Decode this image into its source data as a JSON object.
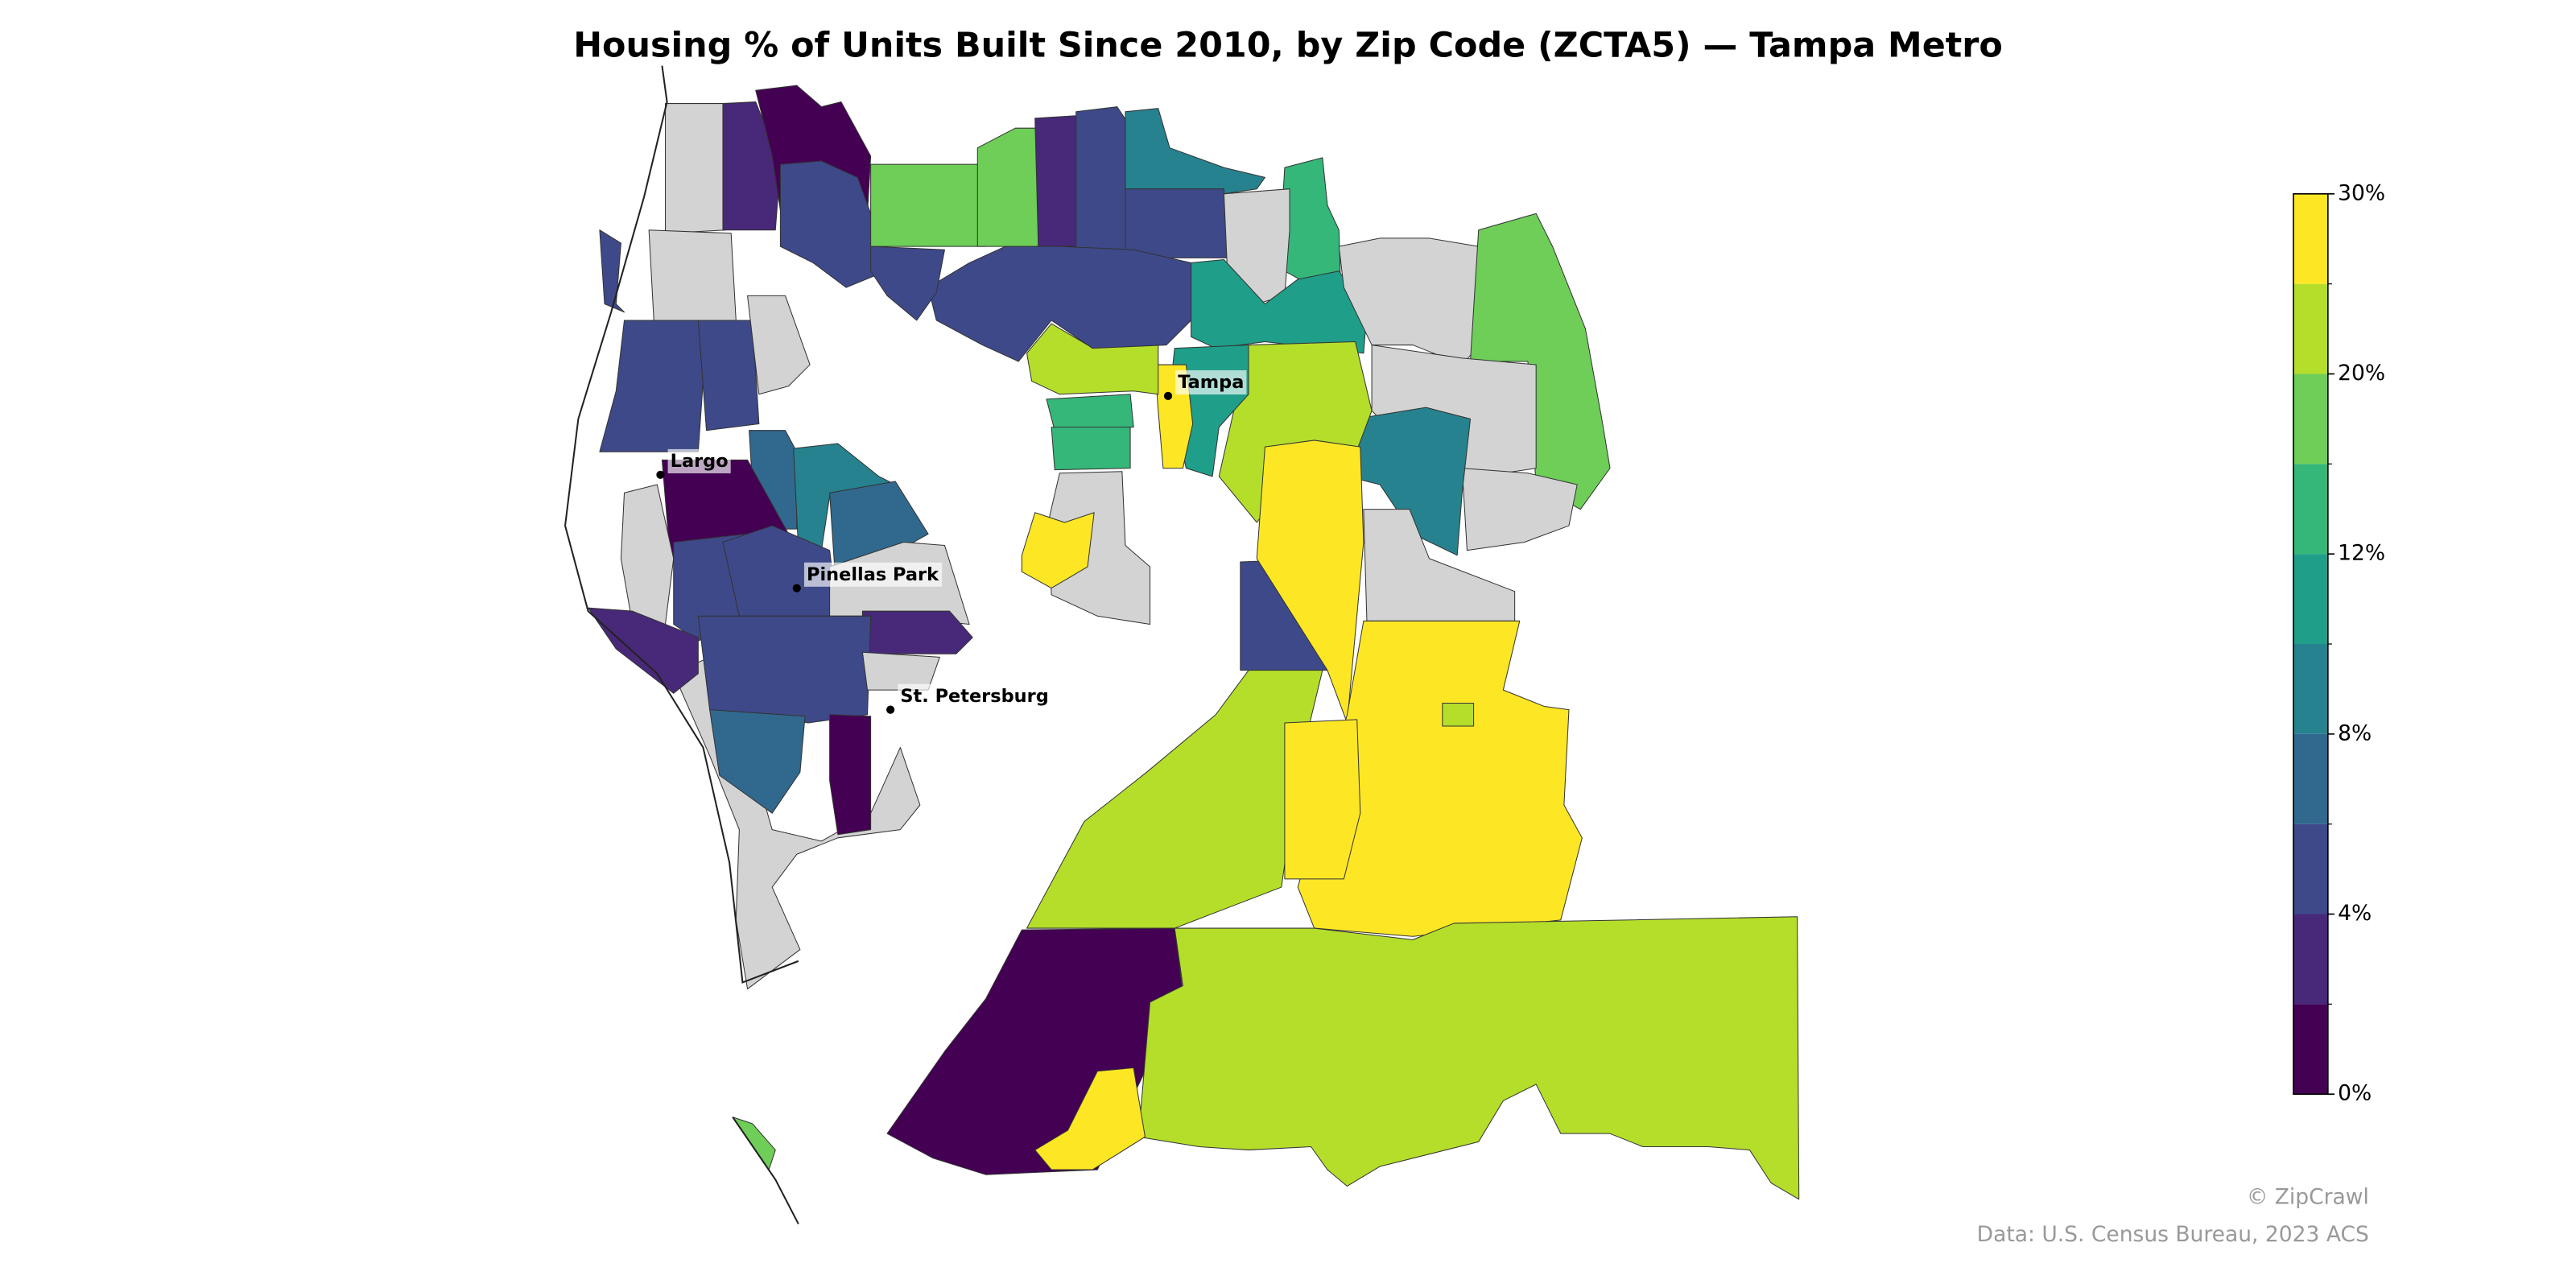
{
  "title": "Housing % of Units Built Since 2010, by Zip Code (ZCTA5) — Tampa Metro",
  "nodata_color": "#d3d3d3",
  "colorbar": {
    "bounds": [
      0,
      2,
      4,
      6,
      8,
      10,
      12,
      16,
      20,
      25,
      30
    ],
    "colors": [
      "#440154",
      "#482878",
      "#3e4989",
      "#31688e",
      "#26828e",
      "#1f9e89",
      "#35b779",
      "#6ece58",
      "#b5de2b",
      "#fde725"
    ],
    "ticks": [
      {
        "value": 0,
        "label": "0%"
      },
      {
        "value": 4,
        "label": "4%"
      },
      {
        "value": 8,
        "label": "8%"
      },
      {
        "value": 12,
        "label": "12%"
      },
      {
        "value": 20,
        "label": "20%"
      },
      {
        "value": 30,
        "label": "30%"
      }
    ]
  },
  "regions": [
    {
      "value": null
    },
    {
      "value": null
    },
    {
      "value": 3
    },
    {
      "value": 1
    },
    {
      "value": 5
    },
    {
      "value": 18
    },
    {
      "value": 18
    },
    {
      "value": 3
    },
    {
      "value": 5
    },
    {
      "value": 9
    },
    {
      "value": 5
    },
    {
      "value": 14
    },
    {
      "value": null
    },
    {
      "value": 11
    },
    {
      "value": null
    },
    {
      "value": 18
    },
    {
      "value": null
    },
    {
      "value": null
    },
    {
      "value": 9
    },
    {
      "value": 22
    },
    {
      "value": 11
    },
    {
      "value": 28
    },
    {
      "value": 22
    },
    {
      "value": 14
    },
    {
      "value": 14
    },
    {
      "value": null
    },
    {
      "value": 28
    },
    {
      "value": 5
    },
    {
      "value": 5
    },
    {
      "value": null
    },
    {
      "value": 5
    },
    {
      "value": 5
    },
    {
      "value": null
    },
    {
      "value": 7
    },
    {
      "value": 9
    },
    {
      "value": 1
    },
    {
      "value": null
    },
    {
      "value": 5
    },
    {
      "value": 5
    },
    {
      "value": 7
    },
    {
      "value": null
    },
    {
      "value": 3
    },
    {
      "value": 5
    },
    {
      "value": null
    },
    {
      "value": 7
    },
    {
      "value": 1
    },
    {
      "value": 3
    },
    {
      "value": 5
    },
    {
      "value": 5
    },
    {
      "value": null
    },
    {
      "value": 28
    },
    {
      "value": 22
    },
    {
      "value": 28
    },
    {
      "value": 28
    },
    {
      "value": 22
    },
    {
      "value": 1
    },
    {
      "value": 22
    },
    {
      "value": 28
    },
    {
      "value": 18
    },
    {
      "value": 9
    }
  ],
  "cities": [
    {
      "name": "Tampa"
    },
    {
      "name": "Largo"
    },
    {
      "name": "Pinellas Park"
    },
    {
      "name": "St. Petersburg"
    }
  ],
  "credit": "© ZipCrawl",
  "source": "Data: U.S. Census Bureau, 2023 ACS"
}
